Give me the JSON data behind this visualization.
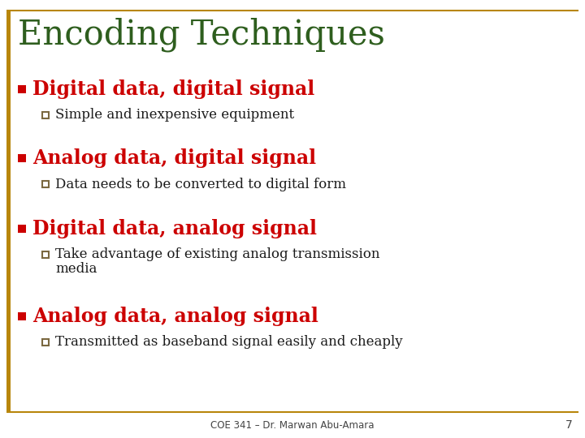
{
  "title": "Encoding Techniques",
  "title_color": "#2E5E1E",
  "title_fontsize": 30,
  "background_color": "#FFFFFF",
  "border_color": "#B8860B",
  "footer_text": "COE 341 – Dr. Marwan Abu-Amara",
  "footer_number": "7",
  "bullet_color": "#CC0000",
  "square_bullet_color": "#7A6840",
  "body_text_color": "#1A1A1A",
  "items": [
    {
      "main": "Digital data, digital signal",
      "sub": [
        "Simple and inexpensive equipment"
      ]
    },
    {
      "main": "Analog data, digital signal",
      "sub": [
        "Data needs to be converted to digital form"
      ]
    },
    {
      "main": "Digital data, analog signal",
      "sub": [
        "Take advantage of existing analog transmission\nmedia"
      ]
    },
    {
      "main": "Analog data, analog signal",
      "sub": [
        "Transmitted as baseband signal easily and cheaply"
      ]
    }
  ]
}
